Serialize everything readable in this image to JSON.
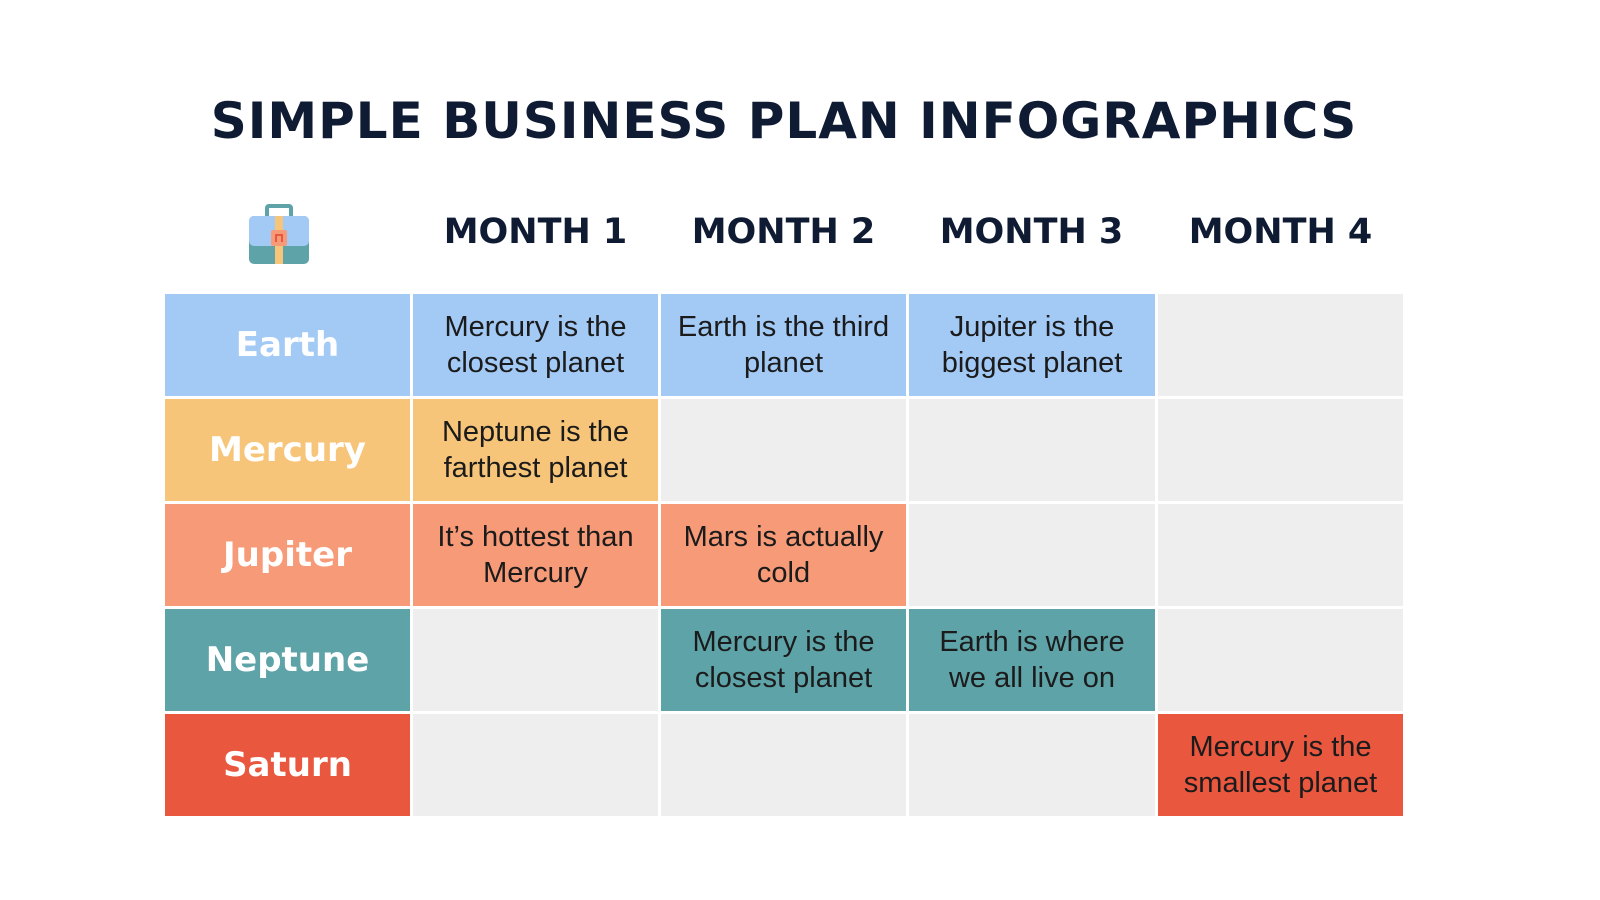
{
  "title": "SIMPLE BUSINESS PLAN INFOGRAPHICS",
  "header_icon": "briefcase-icon",
  "months": [
    "MONTH 1",
    "MONTH 2",
    "MONTH 3",
    "MONTH 4"
  ],
  "colors": {
    "empty": "#eeeeee",
    "title": "#0f1b33"
  },
  "rows": [
    {
      "label": "Earth",
      "color": "#a3c9f5",
      "cells": [
        "Mercury is the closest planet",
        "Earth is the third planet",
        "Jupiter is the biggest planet",
        ""
      ]
    },
    {
      "label": "Mercury",
      "color": "#f7c57a",
      "cells": [
        "Neptune is the farthest planet",
        "",
        "",
        ""
      ]
    },
    {
      "label": "Jupiter",
      "color": "#f79a78",
      "cells": [
        "It’s hottest than Mercury",
        "Mars is actually cold",
        "",
        ""
      ]
    },
    {
      "label": "Neptune",
      "color": "#5ea3a8",
      "cells": [
        "",
        "Mercury is the closest planet",
        "Earth is where we all live on",
        ""
      ]
    },
    {
      "label": "Saturn",
      "color": "#e9573f",
      "cells": [
        "",
        "",
        "",
        "Mercury is the smallest planet"
      ]
    }
  ]
}
